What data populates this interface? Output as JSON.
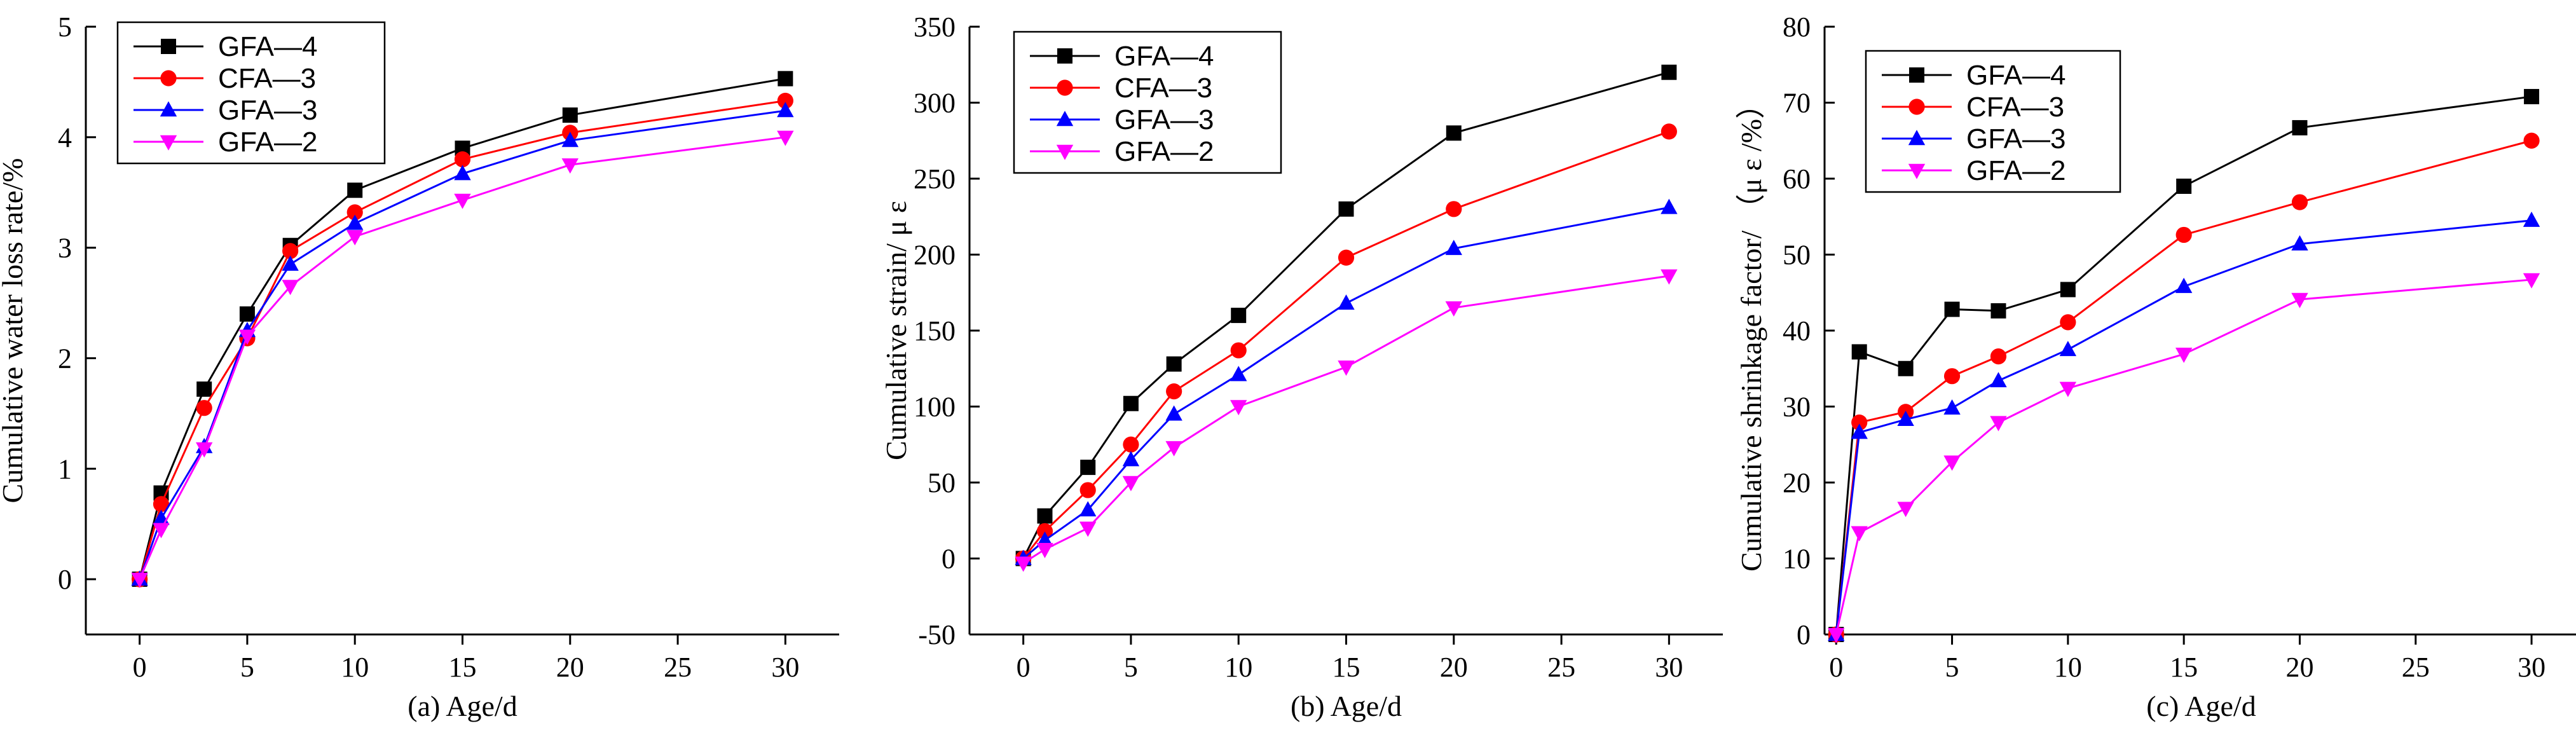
{
  "chart_data": [
    {
      "type": "line",
      "panel": "a",
      "ylabel": "Cumulative water loss rate/%",
      "xlabel": "(a) Age/d",
      "xlim": [
        -2.5,
        32.5
      ],
      "ylim": [
        -0.5,
        5
      ],
      "xticks": [
        0,
        5,
        10,
        15,
        20,
        25,
        30
      ],
      "yticks": [
        0,
        1,
        2,
        3,
        4,
        5
      ],
      "legend_position": "top-left",
      "x": [
        0,
        1,
        3,
        5,
        7,
        10,
        15,
        20,
        30
      ],
      "series": [
        {
          "name": "GFA—4",
          "color": "#000000",
          "marker": "square",
          "values": [
            0,
            0.78,
            1.72,
            2.4,
            3.02,
            3.52,
            3.9,
            4.2,
            4.53
          ]
        },
        {
          "name": "CFA—3",
          "color": "#ff0000",
          "marker": "circle",
          "values": [
            0,
            0.68,
            1.55,
            2.18,
            2.97,
            3.32,
            3.8,
            4.04,
            4.33
          ]
        },
        {
          "name": "GFA—3",
          "color": "#0000ff",
          "marker": "triangle-up",
          "values": [
            0,
            0.55,
            1.2,
            2.25,
            2.85,
            3.22,
            3.67,
            3.97,
            4.24
          ]
        },
        {
          "name": "GFA—2",
          "color": "#ff00ff",
          "marker": "triangle-down",
          "values": [
            0,
            0.45,
            1.18,
            2.2,
            2.65,
            3.1,
            3.43,
            3.75,
            4.0
          ]
        }
      ]
    },
    {
      "type": "line",
      "panel": "b",
      "ylabel": "Cumulative strain/ μ ε",
      "xlabel": "(b) Age/d",
      "xlim": [
        -2.5,
        32.5
      ],
      "ylim": [
        -50,
        350
      ],
      "xticks": [
        0,
        5,
        10,
        15,
        20,
        25,
        30
      ],
      "yticks": [
        -50,
        0,
        50,
        100,
        150,
        200,
        250,
        300,
        350
      ],
      "legend_position": "top-left",
      "x": [
        0,
        1,
        3,
        5,
        7,
        10,
        15,
        20,
        30
      ],
      "series": [
        {
          "name": "GFA—4",
          "color": "#000000",
          "marker": "square",
          "values": [
            0,
            28,
            60,
            102,
            128,
            160,
            230,
            280,
            320
          ]
        },
        {
          "name": "CFA—3",
          "color": "#ff0000",
          "marker": "circle",
          "values": [
            0,
            18,
            45,
            75,
            110,
            137,
            198,
            230,
            281
          ]
        },
        {
          "name": "GFA—3",
          "color": "#0000ff",
          "marker": "triangle-up",
          "values": [
            0,
            12,
            32,
            65,
            95,
            121,
            168,
            204,
            231
          ]
        },
        {
          "name": "GFA—2",
          "color": "#ff00ff",
          "marker": "triangle-down",
          "values": [
            -3,
            6,
            20,
            50,
            73,
            100,
            126,
            165,
            186
          ]
        }
      ]
    },
    {
      "type": "line",
      "panel": "c",
      "ylabel": "Cumulative shrinkage factor/ （μ ε /%）",
      "xlabel": "(c) Age/d",
      "xlim": [
        -0.5,
        32
      ],
      "ylim": [
        0,
        80
      ],
      "xticks": [
        0,
        5,
        10,
        15,
        20,
        25,
        30
      ],
      "yticks": [
        0,
        10,
        20,
        30,
        40,
        50,
        60,
        70,
        80
      ],
      "legend_position": "top-left",
      "x": [
        0,
        1,
        3,
        5,
        7,
        10,
        15,
        20,
        30
      ],
      "series": [
        {
          "name": "GFA—4",
          "color": "#000000",
          "marker": "square",
          "values": [
            0,
            37.2,
            35,
            42.8,
            42.6,
            45.4,
            59,
            66.7,
            70.8
          ]
        },
        {
          "name": "CFA—3",
          "color": "#ff0000",
          "marker": "circle",
          "values": [
            0,
            27.9,
            29.3,
            34,
            36.6,
            41.1,
            52.6,
            56.9,
            65
          ]
        },
        {
          "name": "GFA—3",
          "color": "#0000ff",
          "marker": "triangle-up",
          "values": [
            0,
            26.6,
            28.3,
            29.8,
            33.4,
            37.5,
            45.8,
            51.4,
            54.5
          ]
        },
        {
          "name": "GFA—2",
          "color": "#ff00ff",
          "marker": "triangle-down",
          "values": [
            0,
            13.4,
            16.6,
            22.7,
            27.9,
            32.4,
            36.9,
            44.1,
            46.7
          ]
        }
      ]
    }
  ]
}
